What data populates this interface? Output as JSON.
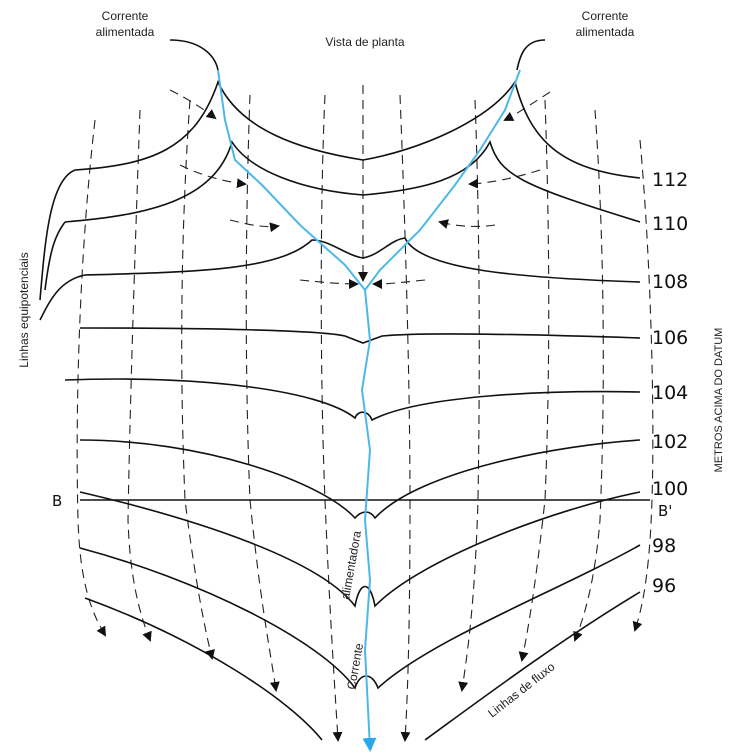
{
  "labels": {
    "left_stream": [
      "Corrente",
      "alimentada"
    ],
    "view_title": "Vista de planta",
    "right_stream": [
      "Corrente",
      "alimentada"
    ],
    "equipotential_lines": "Linhas equipotenciais",
    "axis_title": "METROS ACIMA DO DATUM",
    "flow_lines": "Linhas de fluxo",
    "stream_text": [
      "alimentadora",
      "Corrente"
    ],
    "section": [
      "B",
      "B'"
    ]
  },
  "contours": [
    112,
    110,
    108,
    106,
    104,
    102,
    100,
    98,
    96
  ]
}
